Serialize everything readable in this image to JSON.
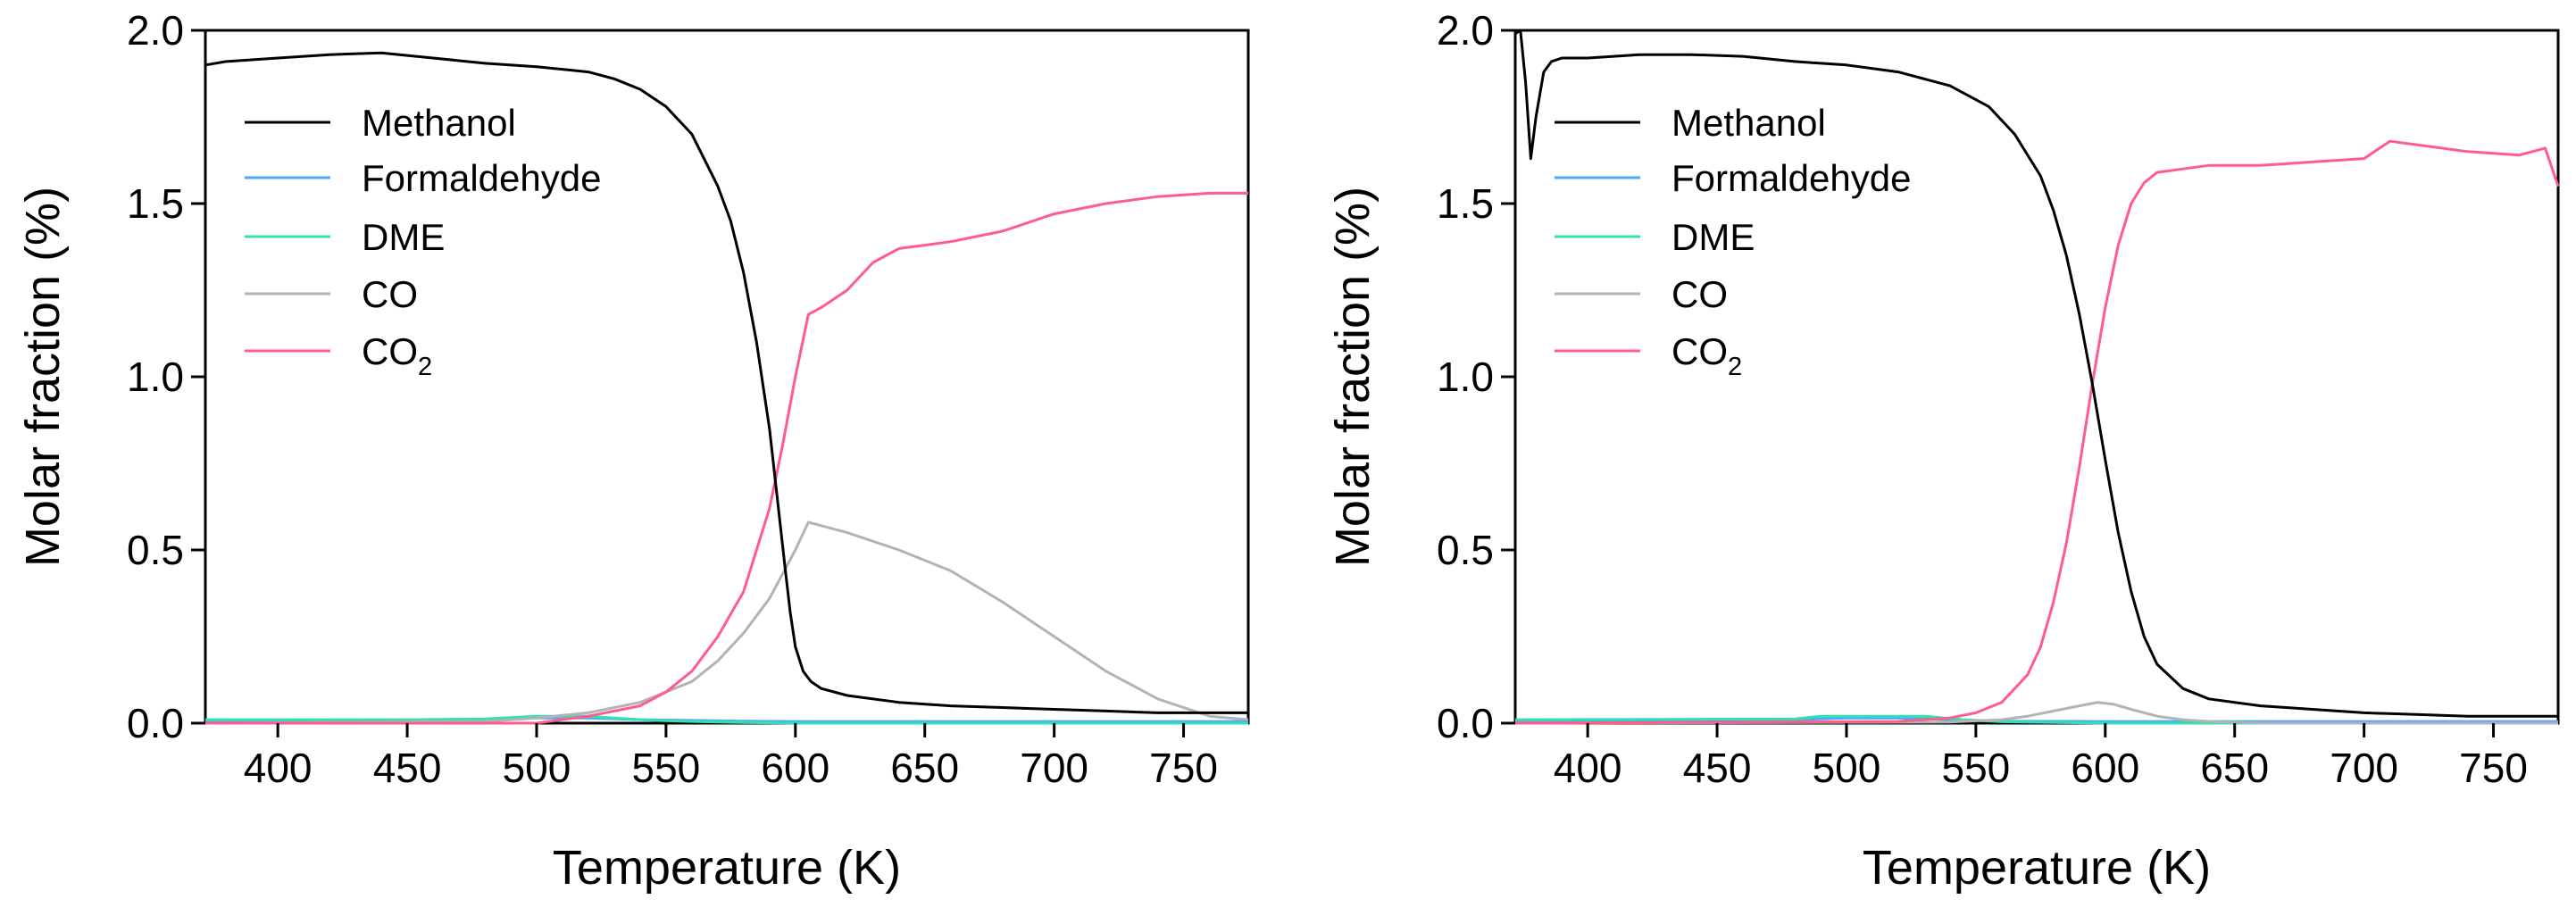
{
  "chart_data": [
    {
      "type": "line",
      "panel": "left",
      "title": "",
      "xlabel": "Temperature (K)",
      "ylabel": "Molar fraction (%)",
      "xlim": [
        372,
        775
      ],
      "ylim": [
        0,
        2.0
      ],
      "xticks": [
        "400",
        "450",
        "500",
        "550",
        "600",
        "650",
        "700",
        "750"
      ],
      "yticks": [
        "0.0",
        "0.5",
        "1.0",
        "1.5",
        "2.0"
      ],
      "grid": false,
      "legend": "top-left",
      "series": [
        {
          "name": "Methanol",
          "label": "Methanol",
          "color": "#000000",
          "x": [
            372,
            380,
            400,
            420,
            440,
            460,
            480,
            500,
            520,
            530,
            540,
            550,
            560,
            570,
            575,
            580,
            585,
            590,
            593,
            596,
            598,
            600,
            603,
            606,
            610,
            620,
            640,
            660,
            680,
            700,
            720,
            740,
            760,
            775
          ],
          "y": [
            1.9,
            1.91,
            1.92,
            1.93,
            1.935,
            1.92,
            1.905,
            1.895,
            1.88,
            1.86,
            1.83,
            1.78,
            1.7,
            1.55,
            1.45,
            1.3,
            1.1,
            0.85,
            0.65,
            0.45,
            0.32,
            0.22,
            0.15,
            0.12,
            0.1,
            0.08,
            0.06,
            0.05,
            0.045,
            0.04,
            0.035,
            0.03,
            0.03,
            0.03
          ]
        },
        {
          "name": "Formaldehyde",
          "label": "Formaldehyde",
          "color": "#4da6ff",
          "x": [
            372,
            450,
            480,
            500,
            520,
            540,
            560,
            580,
            600,
            700,
            775
          ],
          "y": [
            0.005,
            0.005,
            0.01,
            0.015,
            0.015,
            0.01,
            0.008,
            0.006,
            0.005,
            0.005,
            0.005
          ]
        },
        {
          "name": "DME",
          "label": "DME",
          "color": "#33e0b0",
          "x": [
            372,
            450,
            480,
            500,
            520,
            530,
            545,
            560,
            580,
            600,
            700,
            775
          ],
          "y": [
            0.01,
            0.01,
            0.012,
            0.02,
            0.02,
            0.015,
            0.008,
            0.005,
            0.002,
            0.0,
            0.0,
            0.0
          ]
        },
        {
          "name": "CO",
          "label": "CO",
          "color": "#b3b3b3",
          "x": [
            372,
            480,
            500,
            520,
            540,
            560,
            570,
            580,
            590,
            600,
            605,
            610,
            620,
            640,
            660,
            680,
            700,
            720,
            740,
            760,
            775
          ],
          "y": [
            0.0,
            0.005,
            0.015,
            0.03,
            0.06,
            0.12,
            0.18,
            0.26,
            0.36,
            0.5,
            0.58,
            0.57,
            0.55,
            0.5,
            0.44,
            0.35,
            0.25,
            0.15,
            0.07,
            0.02,
            0.01
          ]
        },
        {
          "name": "CO2",
          "label": "CO",
          "sub": "2",
          "color": "#ff5c8a",
          "x": [
            372,
            500,
            520,
            540,
            550,
            560,
            570,
            580,
            590,
            595,
            600,
            605,
            610,
            620,
            630,
            640,
            650,
            660,
            680,
            700,
            720,
            740,
            760,
            775
          ],
          "y": [
            0.0,
            0.0,
            0.02,
            0.05,
            0.09,
            0.15,
            0.25,
            0.38,
            0.62,
            0.8,
            1.0,
            1.18,
            1.2,
            1.25,
            1.33,
            1.37,
            1.38,
            1.39,
            1.42,
            1.47,
            1.5,
            1.52,
            1.53,
            1.53
          ]
        }
      ]
    },
    {
      "type": "line",
      "panel": "right",
      "title": "",
      "xlabel": "Temperature (K)",
      "ylabel": "Molar fraction (%)",
      "xlim": [
        372,
        775
      ],
      "ylim": [
        0,
        2.0
      ],
      "xticks": [
        "400",
        "450",
        "500",
        "550",
        "600",
        "650",
        "700",
        "750"
      ],
      "yticks": [
        "0.0",
        "0.5",
        "1.0",
        "1.5",
        "2.0"
      ],
      "grid": false,
      "legend": "top-left",
      "series": [
        {
          "name": "Methanol",
          "label": "Methanol",
          "color": "#000000",
          "x": [
            372,
            374,
            376,
            378,
            380,
            383,
            386,
            390,
            400,
            420,
            440,
            460,
            480,
            500,
            520,
            540,
            555,
            565,
            575,
            580,
            585,
            590,
            595,
            600,
            605,
            610,
            615,
            620,
            630,
            640,
            660,
            680,
            700,
            720,
            740,
            760,
            775
          ],
          "y": [
            1.99,
            2.0,
            1.85,
            1.63,
            1.75,
            1.88,
            1.91,
            1.92,
            1.92,
            1.93,
            1.93,
            1.925,
            1.91,
            1.9,
            1.88,
            1.84,
            1.78,
            1.7,
            1.58,
            1.48,
            1.35,
            1.18,
            0.98,
            0.76,
            0.55,
            0.38,
            0.25,
            0.17,
            0.1,
            0.07,
            0.05,
            0.04,
            0.03,
            0.025,
            0.02,
            0.02,
            0.02
          ]
        },
        {
          "name": "Formaldehyde",
          "label": "Formaldehyde",
          "color": "#4da6ff",
          "x": [
            372,
            480,
            500,
            520,
            540,
            560,
            600,
            700,
            775
          ],
          "y": [
            0.005,
            0.01,
            0.015,
            0.015,
            0.01,
            0.006,
            0.005,
            0.005,
            0.005
          ]
        },
        {
          "name": "DME",
          "label": "DME",
          "color": "#33e0b0",
          "x": [
            372,
            480,
            490,
            530,
            545,
            560,
            600,
            775
          ],
          "y": [
            0.01,
            0.012,
            0.02,
            0.02,
            0.01,
            0.004,
            0.0,
            0.0
          ]
        },
        {
          "name": "CO",
          "label": "CO",
          "color": "#b3b3b3",
          "x": [
            372,
            540,
            560,
            570,
            580,
            590,
            597,
            603,
            610,
            620,
            630,
            640,
            660,
            775
          ],
          "y": [
            0.0,
            0.003,
            0.01,
            0.02,
            0.035,
            0.05,
            0.06,
            0.055,
            0.04,
            0.02,
            0.01,
            0.005,
            0.0,
            0.0
          ]
        },
        {
          "name": "CO2",
          "label": "CO",
          "sub": "2",
          "color": "#ff5c8a",
          "x": [
            372,
            520,
            540,
            550,
            560,
            570,
            575,
            580,
            585,
            590,
            595,
            600,
            605,
            610,
            615,
            620,
            630,
            640,
            660,
            680,
            700,
            710,
            720,
            740,
            760,
            770,
            775
          ],
          "y": [
            0.0,
            0.005,
            0.015,
            0.03,
            0.06,
            0.14,
            0.22,
            0.35,
            0.52,
            0.74,
            0.98,
            1.2,
            1.38,
            1.5,
            1.56,
            1.59,
            1.6,
            1.61,
            1.61,
            1.62,
            1.63,
            1.68,
            1.67,
            1.65,
            1.64,
            1.66,
            1.55
          ]
        }
      ]
    }
  ]
}
